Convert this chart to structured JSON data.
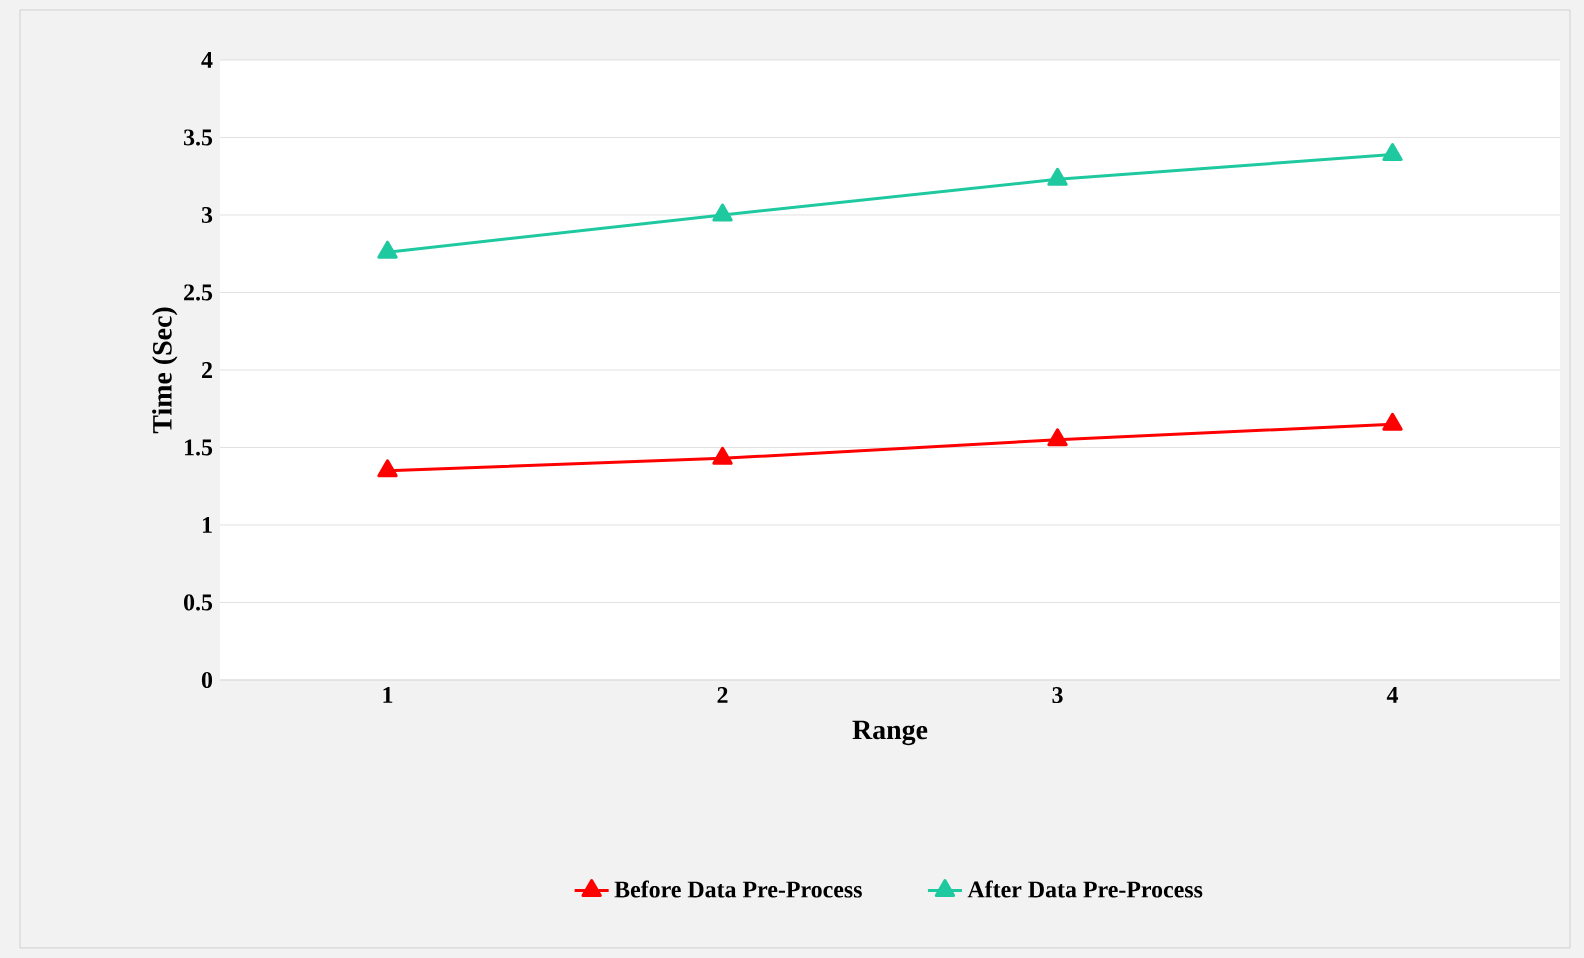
{
  "chart_data": {
    "type": "line",
    "xlabel": "Range",
    "ylabel": "Time (Sec)",
    "categories": [
      "1",
      "2",
      "3",
      "4"
    ],
    "series": [
      {
        "name": "Before Data Pre-Process",
        "color": "#ff0000",
        "values": [
          1.35,
          1.43,
          1.55,
          1.65
        ]
      },
      {
        "name": "After Data Pre-Process",
        "color": "#1fc9a0",
        "values": [
          2.76,
          3.0,
          3.23,
          3.39
        ]
      }
    ],
    "ylim": [
      0,
      4
    ],
    "yticks": [
      0,
      0.5,
      1,
      1.5,
      2,
      2.5,
      3,
      3.5,
      4
    ],
    "grid": "y",
    "legend": "bottom",
    "marker": "triangle",
    "line_style": "solid"
  }
}
